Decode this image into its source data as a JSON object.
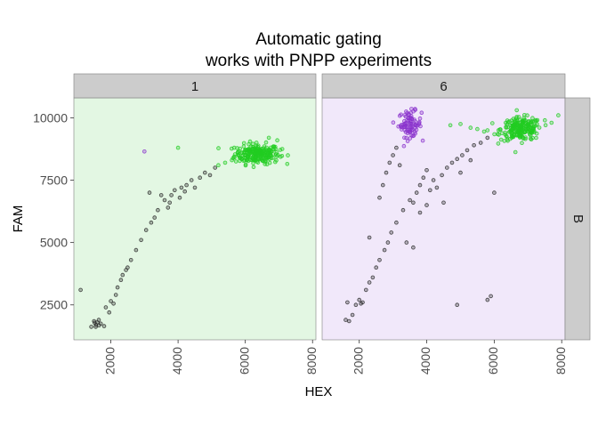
{
  "chart_data": {
    "type": "scatter",
    "title_lines": [
      "Automatic gating",
      "works with PNPP experiments"
    ],
    "xlabel": "HEX",
    "ylabel": "FAM",
    "xlim": [
      900,
      8100
    ],
    "ylim": [
      1100,
      10800
    ],
    "xticks": [
      2000,
      4000,
      6000,
      8000
    ],
    "yticks": [
      2500,
      5000,
      7500,
      10000
    ],
    "row_strip": "B",
    "grid": false,
    "colors": {
      "rain": "#2b2b2b",
      "positive": "#22cc22",
      "purple_cluster": "#8a33cc"
    },
    "panels": [
      {
        "strip": "1",
        "background": "#e3f7e3",
        "clusters": [
          {
            "color": "positive",
            "center": [
              6350,
              8550
            ],
            "spread": [
              330,
              200
            ],
            "n": 230
          }
        ],
        "rain": [
          [
            1500,
            1850
          ],
          [
            1520,
            1780
          ],
          [
            1560,
            1700
          ],
          [
            1600,
            1800
          ],
          [
            1640,
            1900
          ],
          [
            1700,
            1750
          ],
          [
            1420,
            1620
          ],
          [
            1550,
            1620
          ],
          [
            1800,
            1650
          ],
          [
            1650,
            1680
          ],
          [
            1950,
            2200
          ],
          [
            2000,
            2650
          ],
          [
            2080,
            2550
          ],
          [
            2150,
            2900
          ],
          [
            2200,
            3200
          ],
          [
            2350,
            3700
          ],
          [
            2500,
            4000
          ],
          [
            2600,
            4300
          ],
          [
            2750,
            4700
          ],
          [
            2900,
            5100
          ],
          [
            3050,
            5500
          ],
          [
            3200,
            5800
          ],
          [
            3300,
            6000
          ],
          [
            3400,
            6300
          ],
          [
            3600,
            6700
          ],
          [
            3750,
            6600
          ],
          [
            3800,
            6900
          ],
          [
            3900,
            7100
          ],
          [
            4050,
            6800
          ],
          [
            4100,
            7200
          ],
          [
            4250,
            7300
          ],
          [
            4400,
            7500
          ],
          [
            4500,
            7200
          ],
          [
            4650,
            7600
          ],
          [
            4800,
            7800
          ],
          [
            4950,
            7700
          ],
          [
            5100,
            8000
          ],
          [
            3150,
            7000
          ],
          [
            3700,
            6400
          ],
          [
            1100,
            3100
          ],
          [
            2450,
            3900
          ],
          [
            2300,
            3500
          ],
          [
            4200,
            7050
          ],
          [
            3500,
            6900
          ],
          [
            1850,
            2400
          ]
        ],
        "pos_extra": [
          [
            4000,
            8800
          ],
          [
            5200,
            8100
          ],
          [
            5400,
            8200
          ],
          [
            5600,
            8300
          ],
          [
            5800,
            8500
          ],
          [
            5900,
            8350
          ],
          [
            6000,
            8700
          ],
          [
            6950,
            9100
          ],
          [
            7100,
            8750
          ],
          [
            6700,
            9200
          ]
        ],
        "purple_extra": [
          [
            3000,
            8650
          ]
        ]
      },
      {
        "strip": "6",
        "background": "#f1e8fa",
        "clusters": [
          {
            "color": "purple_cluster",
            "center": [
              3500,
              9750
            ],
            "spread": [
              170,
              260
            ],
            "n": 85
          },
          {
            "color": "positive",
            "center": [
              6800,
              9550
            ],
            "spread": [
              300,
              230
            ],
            "n": 210
          }
        ],
        "rain": [
          [
            1600,
            1900
          ],
          [
            1700,
            1850
          ],
          [
            1800,
            2100
          ],
          [
            1900,
            2500
          ],
          [
            2000,
            2700
          ],
          [
            2050,
            2550
          ],
          [
            2200,
            3100
          ],
          [
            2300,
            3400
          ],
          [
            2400,
            3600
          ],
          [
            2500,
            4000
          ],
          [
            2600,
            4300
          ],
          [
            2750,
            4700
          ],
          [
            2850,
            5000
          ],
          [
            2950,
            5400
          ],
          [
            3100,
            5800
          ],
          [
            3300,
            6300
          ],
          [
            3500,
            6700
          ],
          [
            3600,
            6600
          ],
          [
            3700,
            7000
          ],
          [
            3800,
            7300
          ],
          [
            3900,
            7600
          ],
          [
            4000,
            7900
          ],
          [
            4200,
            7500
          ],
          [
            4300,
            7200
          ],
          [
            4450,
            7700
          ],
          [
            4600,
            8000
          ],
          [
            4750,
            8200
          ],
          [
            4900,
            8350
          ],
          [
            5050,
            8500
          ],
          [
            5200,
            8700
          ],
          [
            5400,
            8900
          ],
          [
            5600,
            9000
          ],
          [
            5800,
            9200
          ],
          [
            2800,
            7800
          ],
          [
            2900,
            8200
          ],
          [
            3000,
            8500
          ],
          [
            3100,
            8800
          ],
          [
            2700,
            7300
          ],
          [
            3200,
            8100
          ],
          [
            2600,
            6800
          ],
          [
            3400,
            5000
          ],
          [
            3600,
            4800
          ],
          [
            3800,
            6200
          ],
          [
            4000,
            6500
          ],
          [
            4100,
            7100
          ],
          [
            5900,
            2850
          ],
          [
            5800,
            2700
          ],
          [
            4900,
            2500
          ],
          [
            6000,
            7000
          ],
          [
            1650,
            2600
          ],
          [
            2100,
            2600
          ],
          [
            4500,
            6600
          ],
          [
            5000,
            7800
          ],
          [
            5300,
            8300
          ],
          [
            2300,
            5200
          ]
        ],
        "pos_extra": [
          [
            4700,
            9700
          ],
          [
            5000,
            9750
          ],
          [
            5300,
            9600
          ],
          [
            5500,
            9550
          ],
          [
            5700,
            9450
          ],
          [
            7500,
            9900
          ],
          [
            7700,
            9800
          ],
          [
            5800,
            9500
          ],
          [
            6100,
            9350
          ],
          [
            7900,
            10100
          ]
        ],
        "purple_extra": []
      }
    ]
  }
}
